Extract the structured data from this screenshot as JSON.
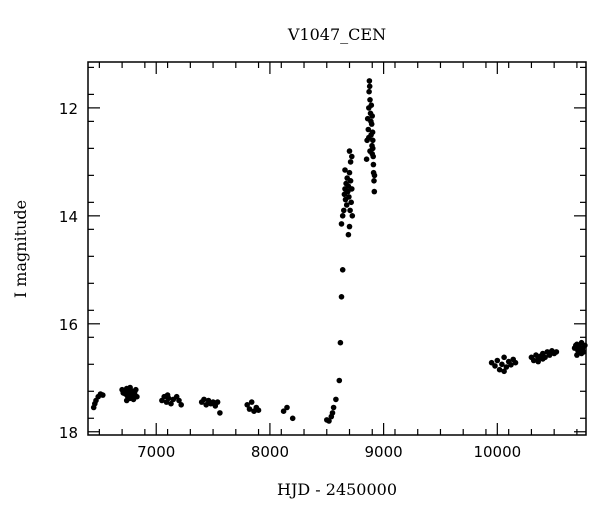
{
  "chart_data": {
    "type": "scatter",
    "title": "V1047_CEN",
    "xlabel": "HJD - 2450000",
    "ylabel": "I magnitude",
    "xlim": [
      6400,
      10780
    ],
    "ylim": [
      18.06,
      11.15
    ],
    "y_inverted": true,
    "x_ticks": [
      7000,
      8000,
      9000,
      10000
    ],
    "x_tick_labels": [
      "7000",
      "8000",
      "9000",
      "10000"
    ],
    "y_ticks": [
      12,
      14,
      16,
      18
    ],
    "y_tick_labels": [
      "12",
      "14",
      "16",
      "18"
    ],
    "grid": false,
    "marker_color": "#000000",
    "series": [
      {
        "points": [
          [
            6450,
            17.55
          ],
          [
            6470,
            17.42
          ],
          [
            6490,
            17.35
          ],
          [
            6510,
            17.3
          ],
          [
            6530,
            17.32
          ],
          [
            6460,
            17.48
          ],
          [
            6700,
            17.22
          ],
          [
            6710,
            17.28
          ],
          [
            6720,
            17.25
          ],
          [
            6730,
            17.3
          ],
          [
            6740,
            17.2
          ],
          [
            6750,
            17.35
          ],
          [
            6760,
            17.27
          ],
          [
            6770,
            17.38
          ],
          [
            6780,
            17.24
          ],
          [
            6790,
            17.32
          ],
          [
            6800,
            17.4
          ],
          [
            6810,
            17.28
          ],
          [
            6820,
            17.22
          ],
          [
            6830,
            17.35
          ],
          [
            6740,
            17.42
          ],
          [
            6770,
            17.18
          ],
          [
            7050,
            17.42
          ],
          [
            7070,
            17.35
          ],
          [
            7090,
            17.45
          ],
          [
            7110,
            17.38
          ],
          [
            7130,
            17.48
          ],
          [
            7150,
            17.4
          ],
          [
            7180,
            17.35
          ],
          [
            7200,
            17.42
          ],
          [
            7220,
            17.5
          ],
          [
            7100,
            17.32
          ],
          [
            7400,
            17.45
          ],
          [
            7420,
            17.4
          ],
          [
            7440,
            17.5
          ],
          [
            7460,
            17.42
          ],
          [
            7480,
            17.48
          ],
          [
            7500,
            17.45
          ],
          [
            7520,
            17.52
          ],
          [
            7540,
            17.45
          ],
          [
            7560,
            17.65
          ],
          [
            7800,
            17.5
          ],
          [
            7820,
            17.58
          ],
          [
            7840,
            17.45
          ],
          [
            7860,
            17.62
          ],
          [
            7880,
            17.55
          ],
          [
            7900,
            17.6
          ],
          [
            8120,
            17.62
          ],
          [
            8150,
            17.55
          ],
          [
            8200,
            17.75
          ],
          [
            8500,
            17.78
          ],
          [
            8520,
            17.8
          ],
          [
            8540,
            17.72
          ],
          [
            8550,
            17.65
          ],
          [
            8560,
            17.55
          ],
          [
            8580,
            17.4
          ],
          [
            8610,
            17.05
          ],
          [
            8620,
            16.35
          ],
          [
            8630,
            15.5
          ],
          [
            8640,
            15.0
          ],
          [
            8630,
            14.15
          ],
          [
            8640,
            14.0
          ],
          [
            8650,
            13.9
          ],
          [
            8655,
            13.6
          ],
          [
            8660,
            13.5
          ],
          [
            8665,
            13.7
          ],
          [
            8670,
            13.4
          ],
          [
            8675,
            13.8
          ],
          [
            8680,
            13.3
          ],
          [
            8685,
            13.55
          ],
          [
            8690,
            13.45
          ],
          [
            8695,
            13.65
          ],
          [
            8700,
            13.2
          ],
          [
            8705,
            13.9
          ],
          [
            8710,
            13.35
          ],
          [
            8715,
            13.75
          ],
          [
            8720,
            13.5
          ],
          [
            8725,
            14.0
          ],
          [
            8690,
            14.35
          ],
          [
            8700,
            14.2
          ],
          [
            8710,
            13.0
          ],
          [
            8720,
            12.9
          ],
          [
            8700,
            12.8
          ],
          [
            8660,
            13.15
          ],
          [
            8850,
            12.95
          ],
          [
            8855,
            12.6
          ],
          [
            8860,
            12.2
          ],
          [
            8865,
            12.4
          ],
          [
            8870,
            12.0
          ],
          [
            8872,
            11.7
          ],
          [
            8875,
            11.5
          ],
          [
            8878,
            11.6
          ],
          [
            8880,
            11.85
          ],
          [
            8885,
            12.1
          ],
          [
            8888,
            12.25
          ],
          [
            8890,
            12.5
          ],
          [
            8892,
            11.95
          ],
          [
            8895,
            12.3
          ],
          [
            8898,
            12.7
          ],
          [
            8900,
            12.85
          ],
          [
            8903,
            12.45
          ],
          [
            8905,
            12.6
          ],
          [
            8908,
            12.9
          ],
          [
            8910,
            13.05
          ],
          [
            8912,
            13.2
          ],
          [
            8915,
            13.35
          ],
          [
            8918,
            13.55
          ],
          [
            8920,
            13.25
          ],
          [
            8880,
            12.8
          ],
          [
            8900,
            12.15
          ],
          [
            8870,
            12.55
          ],
          [
            8905,
            12.75
          ],
          [
            9950,
            16.72
          ],
          [
            9980,
            16.78
          ],
          [
            10000,
            16.68
          ],
          [
            10020,
            16.85
          ],
          [
            10040,
            16.75
          ],
          [
            10060,
            16.62
          ],
          [
            10080,
            16.8
          ],
          [
            10100,
            16.7
          ],
          [
            10120,
            16.76
          ],
          [
            10140,
            16.66
          ],
          [
            10160,
            16.72
          ],
          [
            10060,
            16.88
          ],
          [
            10300,
            16.62
          ],
          [
            10320,
            16.68
          ],
          [
            10340,
            16.58
          ],
          [
            10360,
            16.65
          ],
          [
            10380,
            16.6
          ],
          [
            10400,
            16.55
          ],
          [
            10420,
            16.62
          ],
          [
            10440,
            16.52
          ],
          [
            10460,
            16.58
          ],
          [
            10480,
            16.5
          ],
          [
            10500,
            16.55
          ],
          [
            10520,
            16.52
          ],
          [
            10360,
            16.7
          ],
          [
            10400,
            16.65
          ],
          [
            10680,
            16.45
          ],
          [
            10690,
            16.4
          ],
          [
            10700,
            16.38
          ],
          [
            10710,
            16.5
          ],
          [
            10720,
            16.42
          ],
          [
            10730,
            16.48
          ],
          [
            10740,
            16.35
          ],
          [
            10750,
            16.45
          ],
          [
            10760,
            16.52
          ],
          [
            10770,
            16.4
          ],
          [
            10700,
            16.58
          ],
          [
            10740,
            16.55
          ]
        ]
      }
    ]
  }
}
